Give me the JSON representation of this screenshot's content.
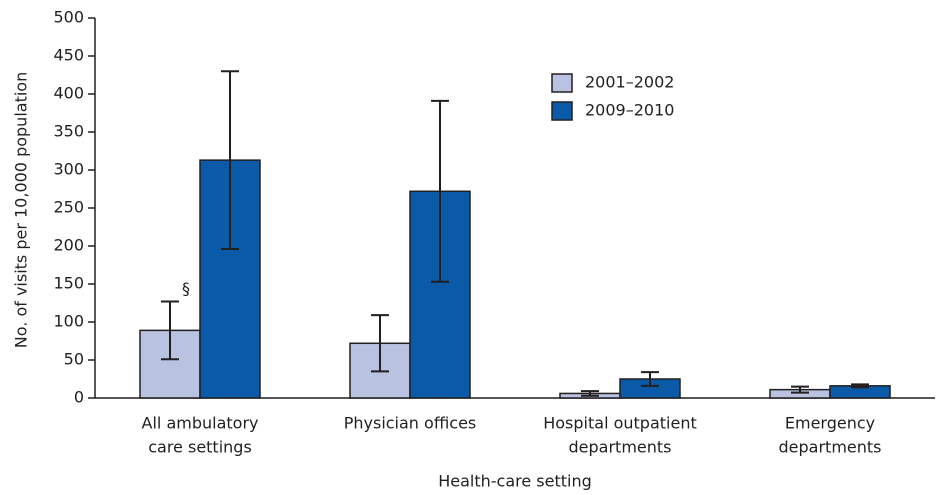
{
  "chart_data": {
    "type": "bar",
    "y_label": "No. of visits per 10,000 population",
    "x_label": "Health-care setting",
    "categories": [
      [
        "All ambulatory",
        "care settings"
      ],
      [
        "Physician offices"
      ],
      [
        "Hospital outpatient",
        "departments"
      ],
      [
        "Emergency",
        "departments"
      ]
    ],
    "series": [
      {
        "name": "2001–2002",
        "color": "#b9c3e1",
        "values": [
          89,
          72,
          6,
          11
        ],
        "errors": [
          38,
          37,
          3,
          4
        ]
      },
      {
        "name": "2009–2010",
        "color": "#0b5aa8",
        "values": [
          313,
          272,
          25,
          16
        ],
        "errors": [
          117,
          119,
          9,
          2
        ]
      }
    ],
    "annotations": [
      {
        "text": "§"
      }
    ],
    "ylim": [
      0,
      500
    ],
    "yticks": [
      0,
      50,
      100,
      150,
      200,
      250,
      300,
      350,
      400,
      450,
      500
    ],
    "grid": false
  }
}
